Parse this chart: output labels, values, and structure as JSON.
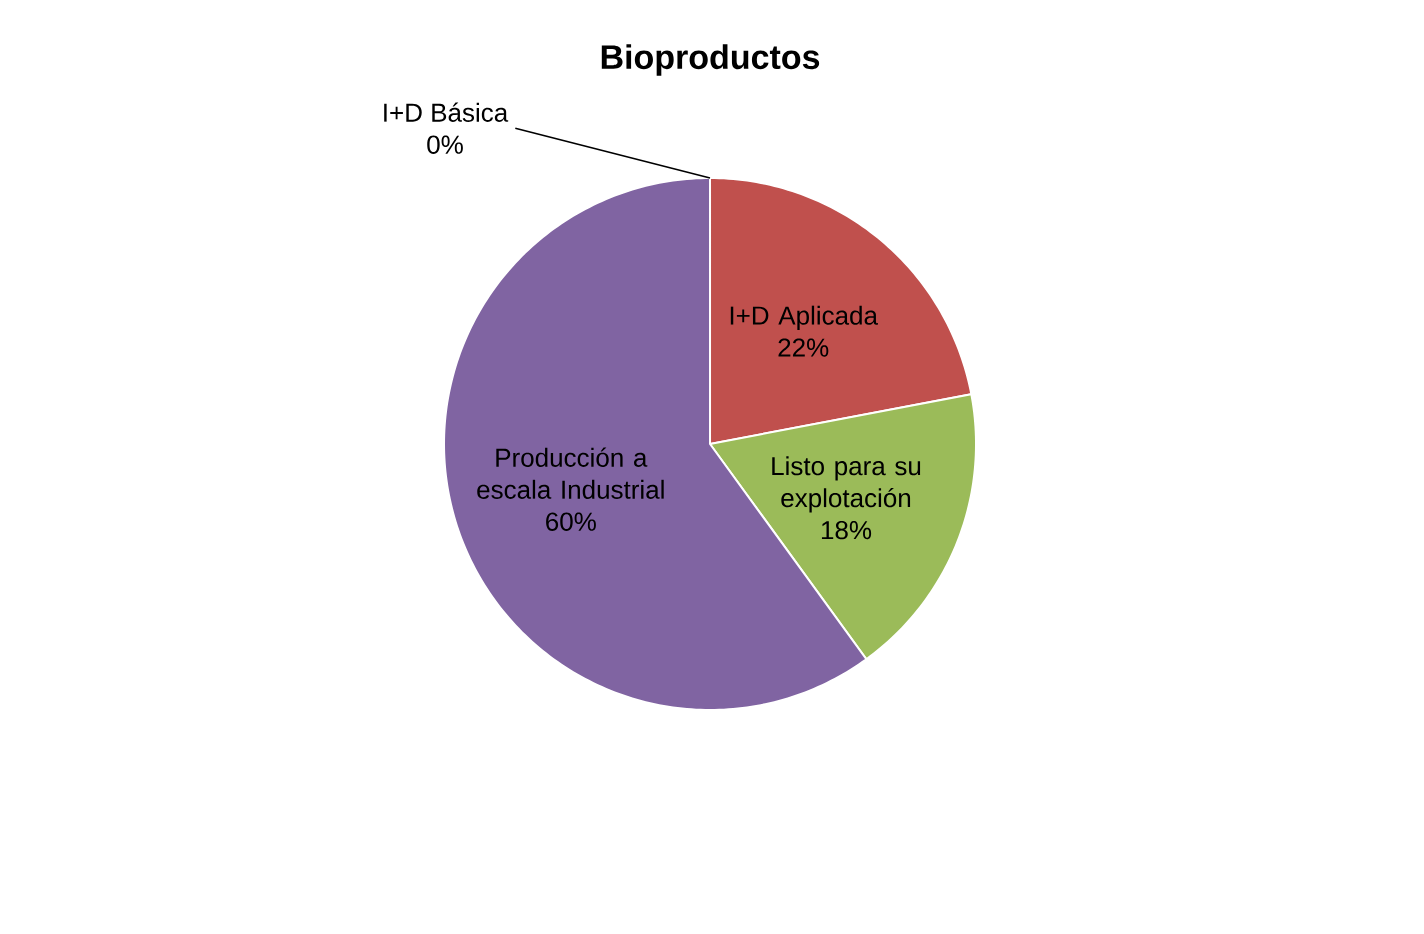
{
  "chart_data": {
    "type": "pie",
    "title": "Bioproductos",
    "categories": [
      "I+D Básica",
      "I+D Aplicada",
      "Listo para su explotación",
      "Producción a escala Industrial"
    ],
    "values": [
      0,
      22,
      18,
      60
    ],
    "value_labels": [
      "0%",
      "22%",
      "18%",
      "60%"
    ],
    "colors": [
      "#4f81bd",
      "#c0504d",
      "#9bbb59",
      "#8064a2"
    ]
  }
}
